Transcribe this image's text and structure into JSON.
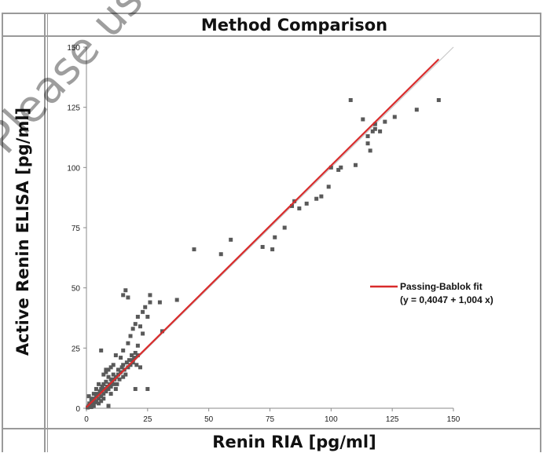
{
  "header": {
    "title": "Method Comparison"
  },
  "watermark": {
    "text": "Please use only the va"
  },
  "chart_data": {
    "type": "scatter",
    "title": "Method Comparison",
    "xlabel": "Renin RIA [pg/ml]",
    "ylabel": "Active Renin ELISA [pg/ml]",
    "xlim": [
      0,
      150
    ],
    "ylim": [
      0,
      150
    ],
    "xticks": [
      0,
      25,
      50,
      75,
      100,
      125,
      150
    ],
    "yticks": [
      0,
      25,
      50,
      75,
      100,
      125,
      150
    ],
    "grid": false,
    "legend_position": "right",
    "fit": {
      "name": "Passing-Bablok fit",
      "equation": "(y = 0,4047 + 1,004 x)",
      "intercept": 0.4047,
      "slope": 1.004,
      "x_range": [
        0,
        144
      ],
      "color": "#d92b2b"
    },
    "identity_line": {
      "x_range": [
        0,
        150
      ],
      "color": "#c8c8c8"
    },
    "marker_color": "#595959",
    "points": [
      [
        0.5,
        0.3
      ],
      [
        1,
        1
      ],
      [
        1.2,
        2
      ],
      [
        1.5,
        0.5
      ],
      [
        2,
        1.5
      ],
      [
        2,
        3
      ],
      [
        2.5,
        2
      ],
      [
        3,
        1
      ],
      [
        3,
        4
      ],
      [
        3.5,
        2.5
      ],
      [
        4,
        3
      ],
      [
        4,
        5
      ],
      [
        4.5,
        6
      ],
      [
        5,
        4
      ],
      [
        5,
        2
      ],
      [
        5.5,
        7
      ],
      [
        6,
        5
      ],
      [
        6,
        8
      ],
      [
        6.5,
        9
      ],
      [
        7,
        6
      ],
      [
        7,
        10
      ],
      [
        7.5,
        8
      ],
      [
        8,
        7
      ],
      [
        8,
        11
      ],
      [
        8.5,
        9
      ],
      [
        9,
        8
      ],
      [
        9,
        13
      ],
      [
        9.5,
        10
      ],
      [
        10,
        9
      ],
      [
        10,
        12
      ],
      [
        10.5,
        11
      ],
      [
        11,
        10
      ],
      [
        11,
        14
      ],
      [
        11.5,
        12
      ],
      [
        12,
        13
      ],
      [
        12.5,
        10
      ],
      [
        13,
        14
      ],
      [
        13,
        16
      ],
      [
        13.5,
        12
      ],
      [
        14,
        15
      ],
      [
        14.5,
        17
      ],
      [
        15,
        13
      ],
      [
        15,
        18
      ],
      [
        15.5,
        16
      ],
      [
        16,
        14
      ],
      [
        16.5,
        19
      ],
      [
        17,
        17
      ],
      [
        17.5,
        20
      ],
      [
        18,
        18
      ],
      [
        18.5,
        22
      ],
      [
        19,
        19
      ],
      [
        19.5,
        21
      ],
      [
        20,
        23
      ],
      [
        20.5,
        18
      ],
      [
        21,
        22
      ],
      [
        2,
        4
      ],
      [
        3,
        6
      ],
      [
        4,
        8
      ],
      [
        1,
        5
      ],
      [
        2,
        0.5
      ],
      [
        5,
        10
      ],
      [
        6,
        3
      ],
      [
        7,
        14
      ],
      [
        8,
        15
      ],
      [
        9,
        16
      ],
      [
        10,
        17
      ],
      [
        11,
        18
      ],
      [
        12,
        22
      ],
      [
        6,
        24
      ],
      [
        8,
        16
      ],
      [
        14,
        21
      ],
      [
        15,
        24
      ],
      [
        17,
        27
      ],
      [
        18,
        30
      ],
      [
        19,
        33
      ],
      [
        20,
        35
      ],
      [
        21,
        38
      ],
      [
        22,
        34
      ],
      [
        23,
        40
      ],
      [
        24,
        42
      ],
      [
        25,
        38
      ],
      [
        26,
        44
      ],
      [
        15,
        47
      ],
      [
        16,
        49
      ],
      [
        17,
        46
      ],
      [
        26,
        47
      ],
      [
        30,
        44
      ],
      [
        37,
        45
      ],
      [
        19,
        20
      ],
      [
        20,
        8
      ],
      [
        25,
        8
      ],
      [
        9,
        1
      ],
      [
        31,
        32
      ],
      [
        44,
        66
      ],
      [
        55,
        64
      ],
      [
        59,
        70
      ],
      [
        72,
        67
      ],
      [
        76,
        66
      ],
      [
        77,
        71
      ],
      [
        81,
        75
      ],
      [
        84,
        84
      ],
      [
        85,
        86
      ],
      [
        87,
        83
      ],
      [
        90,
        85
      ],
      [
        94,
        87
      ],
      [
        96,
        88
      ],
      [
        99,
        92
      ],
      [
        100,
        100
      ],
      [
        103,
        99
      ],
      [
        104,
        100
      ],
      [
        108,
        128
      ],
      [
        110,
        101
      ],
      [
        113,
        120
      ],
      [
        115,
        110
      ],
      [
        116,
        107
      ],
      [
        117,
        115
      ],
      [
        118,
        118
      ],
      [
        120,
        115
      ],
      [
        122,
        119
      ],
      [
        126,
        121
      ],
      [
        135,
        124
      ],
      [
        144,
        128
      ],
      [
        115,
        113
      ],
      [
        118,
        116
      ],
      [
        12,
        8
      ],
      [
        10,
        6
      ],
      [
        7,
        4
      ],
      [
        22,
        17
      ],
      [
        21,
        26
      ],
      [
        23,
        31
      ]
    ]
  }
}
